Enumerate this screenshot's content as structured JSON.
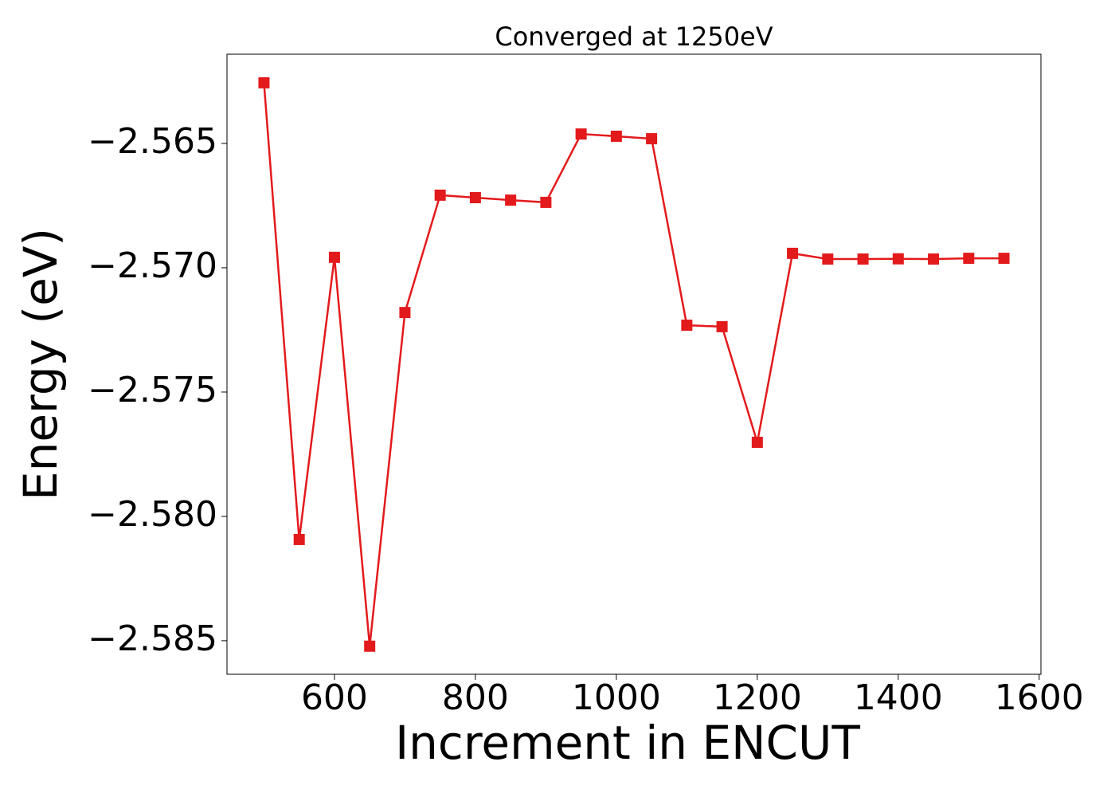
{
  "chart_data": {
    "type": "line",
    "title": "Converged at 1250eV",
    "x_label": "Increment in ENCUT",
    "y_label": "Energy (eV)",
    "x": [
      500,
      550,
      600,
      650,
      700,
      750,
      800,
      850,
      900,
      950,
      1000,
      1050,
      1100,
      1150,
      1200,
      1250,
      1300,
      1350,
      1400,
      1450,
      1500,
      1550
    ],
    "series": [
      {
        "color": "#e31a1c",
        "values": [
          -2.56256,
          -2.58093,
          -2.56958,
          -2.58522,
          -2.5718,
          -2.56708,
          -2.56718,
          -2.56728,
          -2.56737,
          -2.56462,
          -2.56471,
          -2.56481,
          -2.57231,
          -2.57237,
          -2.57702,
          -2.56942,
          -2.56965,
          -2.56965,
          -2.56964,
          -2.56965,
          -2.56962,
          -2.56962
        ]
      }
    ],
    "xlim": [
      447.5,
      1602.5
    ],
    "ylim": [
      -2.58635,
      -2.56141
    ],
    "xticks": [
      600,
      800,
      1000,
      1200,
      1400,
      1600
    ],
    "yticks": [
      {
        "value": -2.585,
        "label": "−2.585"
      },
      {
        "value": -2.58,
        "label": "−2.580"
      },
      {
        "value": -2.575,
        "label": "−2.575"
      },
      {
        "value": -2.57,
        "label": "−2.570"
      },
      {
        "value": -2.565,
        "label": "−2.565"
      }
    ]
  }
}
